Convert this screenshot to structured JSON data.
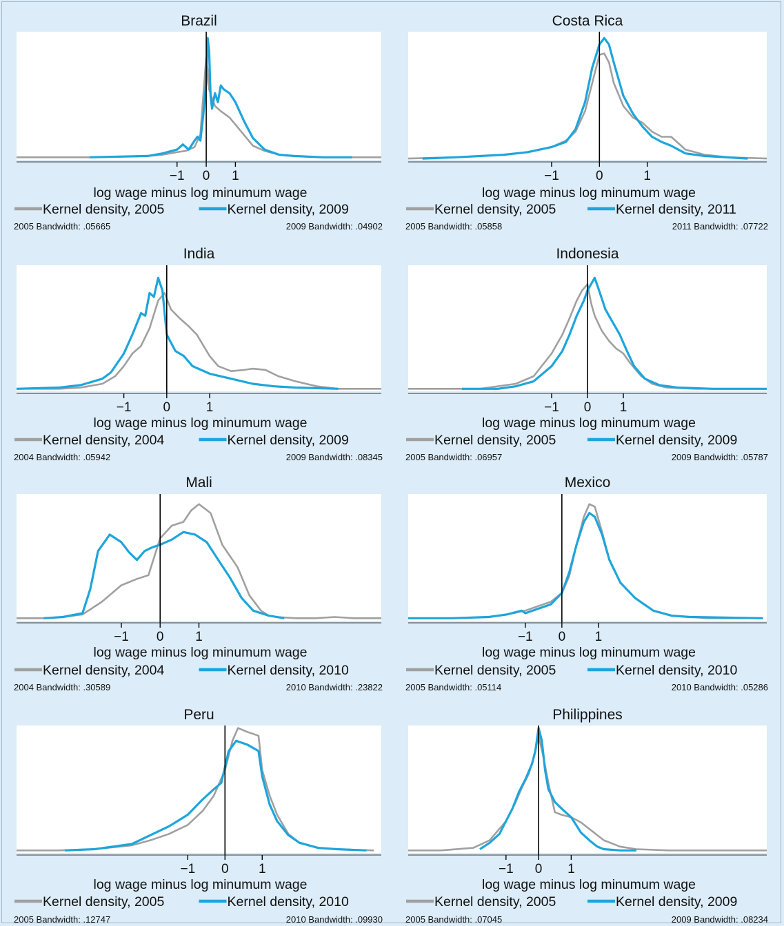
{
  "colors": {
    "background": "#dcecf8",
    "plot_bg": "#ffffff",
    "gray_series": "#a0a0a0",
    "blue_series": "#1ea5dc",
    "axis": "#000000"
  },
  "chart_data": [
    {
      "type": "line",
      "title": "Brazil",
      "xlabel": "log wage minus log minumum wage",
      "xlim": [
        -6.5,
        6.0
      ],
      "ylim": [
        0,
        1.0
      ],
      "xticks": [
        "−1",
        "0",
        "1"
      ],
      "xtick_values": [
        -1,
        0,
        1
      ],
      "vline_x": 0,
      "legend": [
        "Kernel density, 2005",
        "Kernel density, 2009"
      ],
      "bandwidth": [
        "2005 Bandwidth: .05665",
        "2009 Bandwidth: .04902"
      ],
      "series": [
        {
          "name": "Kernel density, 2005",
          "x": [
            -6.5,
            -4,
            -2,
            -1.5,
            -1,
            -0.7,
            -0.4,
            -0.2,
            -0.1,
            0,
            0.05,
            0.1,
            0.2,
            0.3,
            0.5,
            0.8,
            1.2,
            1.6,
            2,
            2.5,
            3,
            4,
            6
          ],
          "y": [
            0.02,
            0.02,
            0.03,
            0.04,
            0.06,
            0.07,
            0.1,
            0.2,
            0.5,
            0.8,
            0.7,
            0.55,
            0.48,
            0.42,
            0.38,
            0.33,
            0.22,
            0.11,
            0.07,
            0.04,
            0.03,
            0.02,
            0.02
          ]
        },
        {
          "name": "Kernel density, 2009",
          "x": [
            -4,
            -2,
            -1.5,
            -1,
            -0.8,
            -0.6,
            -0.4,
            -0.3,
            -0.2,
            -0.1,
            0,
            0.05,
            0.1,
            0.15,
            0.2,
            0.3,
            0.4,
            0.5,
            0.6,
            0.8,
            1,
            1.3,
            1.6,
            2,
            2.5,
            3,
            4,
            5
          ],
          "y": [
            0.02,
            0.03,
            0.05,
            0.08,
            0.12,
            0.08,
            0.15,
            0.18,
            0.15,
            0.35,
            0.6,
            0.95,
            0.85,
            0.5,
            0.4,
            0.52,
            0.45,
            0.58,
            0.55,
            0.52,
            0.45,
            0.3,
            0.17,
            0.08,
            0.04,
            0.03,
            0.02,
            0.02
          ]
        }
      ]
    },
    {
      "type": "line",
      "title": "Costa Rica",
      "xlabel": "log wage minus log minumum wage",
      "xlim": [
        -4.0,
        3.5
      ],
      "ylim": [
        0,
        1.0
      ],
      "xticks": [
        "−1",
        "0",
        "1"
      ],
      "xtick_values": [
        -1,
        0,
        1
      ],
      "vline_x": 0,
      "legend": [
        "Kernel density, 2005",
        "Kernel density, 2011"
      ],
      "bandwidth": [
        "2005 Bandwidth: .05858",
        "2011 Bandwidth: .07722"
      ],
      "series": [
        {
          "name": "Kernel density, 2005",
          "x": [
            -4,
            -3,
            -2,
            -1.5,
            -1,
            -0.7,
            -0.5,
            -0.3,
            -0.15,
            0,
            0.1,
            0.2,
            0.3,
            0.5,
            0.7,
            0.9,
            1.1,
            1.3,
            1.5,
            1.8,
            2.2,
            2.7,
            3.5
          ],
          "y": [
            0.01,
            0.02,
            0.04,
            0.06,
            0.1,
            0.15,
            0.22,
            0.38,
            0.6,
            0.82,
            0.83,
            0.76,
            0.6,
            0.42,
            0.33,
            0.29,
            0.22,
            0.18,
            0.18,
            0.08,
            0.04,
            0.02,
            0.01
          ]
        },
        {
          "name": "Kernel density, 2011",
          "x": [
            -3.7,
            -3,
            -2,
            -1.5,
            -1,
            -0.7,
            -0.5,
            -0.3,
            -0.15,
            0,
            0.1,
            0.2,
            0.3,
            0.5,
            0.7,
            0.9,
            1.1,
            1.3,
            1.5,
            1.8,
            2.2,
            3.1
          ],
          "y": [
            0.01,
            0.02,
            0.04,
            0.06,
            0.1,
            0.14,
            0.24,
            0.45,
            0.72,
            0.9,
            0.95,
            0.9,
            0.76,
            0.5,
            0.36,
            0.26,
            0.18,
            0.14,
            0.11,
            0.05,
            0.03,
            0.01
          ]
        }
      ]
    },
    {
      "type": "line",
      "title": "India",
      "xlabel": "log wage minus log minumum wage",
      "xlim": [
        -3.5,
        5.0
      ],
      "ylim": [
        0,
        1.0
      ],
      "xticks": [
        "−1",
        "0",
        "1"
      ],
      "xtick_values": [
        -1,
        0,
        1
      ],
      "vline_x": 0,
      "legend": [
        "Kernel density, 2004",
        "Kernel density, 2009"
      ],
      "bandwidth": [
        "2004 Bandwidth: .05942",
        "2009 Bandwidth: .08345"
      ],
      "series": [
        {
          "name": "Kernel density, 2004",
          "x": [
            -3.5,
            -2.5,
            -2,
            -1.5,
            -1.2,
            -1,
            -0.8,
            -0.6,
            -0.4,
            -0.2,
            -0.05,
            0.1,
            0.3,
            0.5,
            0.7,
            1,
            1.2,
            1.5,
            1.8,
            2,
            2.3,
            2.6,
            3,
            3.5,
            4,
            4.5,
            5
          ],
          "y": [
            0.02,
            0.02,
            0.03,
            0.06,
            0.12,
            0.2,
            0.3,
            0.36,
            0.5,
            0.72,
            0.78,
            0.65,
            0.58,
            0.52,
            0.45,
            0.28,
            0.2,
            0.16,
            0.17,
            0.18,
            0.17,
            0.12,
            0.08,
            0.04,
            0.02,
            0.02,
            0.02
          ]
        },
        {
          "name": "Kernel density, 2009",
          "x": [
            -3.5,
            -2.5,
            -2,
            -1.5,
            -1.3,
            -1,
            -0.8,
            -0.6,
            -0.5,
            -0.4,
            -0.3,
            -0.2,
            -0.1,
            0,
            0.2,
            0.4,
            0.6,
            1,
            1.5,
            2,
            2.5,
            3,
            4
          ],
          "y": [
            0.02,
            0.03,
            0.05,
            0.1,
            0.15,
            0.3,
            0.45,
            0.62,
            0.6,
            0.78,
            0.75,
            0.9,
            0.8,
            0.45,
            0.32,
            0.28,
            0.2,
            0.14,
            0.1,
            0.06,
            0.04,
            0.03,
            0.02
          ]
        }
      ]
    },
    {
      "type": "line",
      "title": "Indonesia",
      "xlabel": "log wage minus log minumum wage",
      "xlim": [
        -5.0,
        5.0
      ],
      "ylim": [
        0,
        1.0
      ],
      "xticks": [
        "−1",
        "0",
        "1"
      ],
      "xtick_values": [
        -1,
        0,
        1
      ],
      "vline_x": 0,
      "legend": [
        "Kernel density, 2005",
        "Kernel density, 2009"
      ],
      "bandwidth": [
        "2005 Bandwidth: .06957",
        "2009 Bandwidth: .05787"
      ],
      "series": [
        {
          "name": "Kernel density, 2005",
          "x": [
            -5,
            -3,
            -2,
            -1.5,
            -1,
            -0.7,
            -0.5,
            -0.3,
            -0.15,
            0,
            0.1,
            0.2,
            0.4,
            0.6,
            0.8,
            1,
            1.2,
            1.5,
            1.8,
            2.2,
            3,
            4,
            5
          ],
          "y": [
            0.02,
            0.02,
            0.06,
            0.12,
            0.3,
            0.45,
            0.58,
            0.72,
            0.8,
            0.85,
            0.7,
            0.6,
            0.48,
            0.4,
            0.34,
            0.3,
            0.22,
            0.12,
            0.06,
            0.03,
            0.02,
            0.02,
            0.02
          ]
        },
        {
          "name": "Kernel density, 2009",
          "x": [
            -3.5,
            -2.5,
            -2,
            -1.5,
            -1,
            -0.7,
            -0.5,
            -0.3,
            -0.1,
            0,
            0.1,
            0.2,
            0.3,
            0.5,
            0.7,
            0.9,
            1.1,
            1.3,
            1.6,
            2,
            2.5,
            3.5,
            5
          ],
          "y": [
            0.02,
            0.02,
            0.04,
            0.08,
            0.2,
            0.32,
            0.45,
            0.6,
            0.72,
            0.8,
            0.85,
            0.9,
            0.82,
            0.65,
            0.55,
            0.45,
            0.32,
            0.2,
            0.1,
            0.05,
            0.03,
            0.02,
            0.02
          ]
        }
      ]
    },
    {
      "type": "line",
      "title": "Mali",
      "xlabel": "log wage minus log minumum wage",
      "xlim": [
        -3.7,
        5.7
      ],
      "ylim": [
        0,
        1.0
      ],
      "xticks": [
        "−1",
        "0",
        "1"
      ],
      "xtick_values": [
        -1,
        0,
        1
      ],
      "vline_x": 0,
      "legend": [
        "Kernel density, 2004",
        "Kernel density, 2010"
      ],
      "bandwidth": [
        "2004 Bandwidth: .30589",
        "2010 Bandwidth: .23822"
      ],
      "series": [
        {
          "name": "Kernel density, 2004",
          "x": [
            -3.7,
            -3,
            -2.5,
            -2,
            -1.5,
            -1,
            -0.6,
            -0.3,
            0,
            0.3,
            0.6,
            0.8,
            1,
            1.3,
            1.6,
            2,
            2.3,
            2.6,
            2.8,
            3,
            3.5,
            4,
            4.5,
            5,
            5.7
          ],
          "y": [
            0.02,
            0.02,
            0.03,
            0.05,
            0.15,
            0.28,
            0.33,
            0.36,
            0.65,
            0.75,
            0.78,
            0.87,
            0.92,
            0.85,
            0.6,
            0.42,
            0.2,
            0.08,
            0.04,
            0.03,
            0.02,
            0.02,
            0.03,
            0.02,
            0.02
          ]
        },
        {
          "name": "Kernel density, 2010",
          "x": [
            -3,
            -2.5,
            -2,
            -1.8,
            -1.6,
            -1.3,
            -1,
            -0.8,
            -0.6,
            -0.4,
            -0.2,
            0,
            0.3,
            0.6,
            0.9,
            1.2,
            1.5,
            1.8,
            2.1,
            2.4,
            2.8,
            3.2
          ],
          "y": [
            0.02,
            0.03,
            0.06,
            0.25,
            0.55,
            0.68,
            0.62,
            0.54,
            0.48,
            0.55,
            0.58,
            0.6,
            0.64,
            0.7,
            0.68,
            0.62,
            0.48,
            0.34,
            0.18,
            0.08,
            0.04,
            0.02
          ]
        }
      ]
    },
    {
      "type": "line",
      "title": "Mexico",
      "xlabel": "log wage minus log minumum wage",
      "xlim": [
        -4.2,
        5.6
      ],
      "ylim": [
        0,
        1.0
      ],
      "xticks": [
        "−1",
        "0",
        "1"
      ],
      "xtick_values": [
        -1,
        0,
        1
      ],
      "vline_x": 0,
      "legend": [
        "Kernel density, 2005",
        "Kernel density, 2010"
      ],
      "bandwidth": [
        "2005 Bandwidth: .05114",
        "2010 Bandwidth: .05286"
      ],
      "series": [
        {
          "name": "Kernel density, 2005",
          "x": [
            -4.2,
            -3,
            -2,
            -1.5,
            -1,
            -0.6,
            -0.3,
            0,
            0.2,
            0.4,
            0.6,
            0.75,
            0.9,
            1.1,
            1.3,
            1.6,
            2,
            2.5,
            3,
            3.5,
            4,
            5
          ],
          "y": [
            0.02,
            0.02,
            0.03,
            0.05,
            0.08,
            0.12,
            0.15,
            0.22,
            0.35,
            0.6,
            0.82,
            0.92,
            0.9,
            0.7,
            0.48,
            0.3,
            0.18,
            0.08,
            0.04,
            0.03,
            0.02,
            0.02
          ]
        },
        {
          "name": "Kernel density, 2010",
          "x": [
            -4.2,
            -3,
            -2,
            -1.5,
            -1.1,
            -1,
            -0.6,
            -0.3,
            0,
            0.2,
            0.4,
            0.6,
            0.75,
            0.9,
            1.1,
            1.3,
            1.6,
            2,
            2.5,
            3,
            3.5,
            5.5
          ],
          "y": [
            0.02,
            0.02,
            0.03,
            0.05,
            0.08,
            0.06,
            0.1,
            0.13,
            0.22,
            0.38,
            0.6,
            0.78,
            0.85,
            0.82,
            0.68,
            0.48,
            0.3,
            0.18,
            0.08,
            0.04,
            0.03,
            0.02
          ]
        }
      ]
    },
    {
      "type": "line",
      "title": "Peru",
      "xlabel": "log wage minus log minumum wage",
      "xlim": [
        -5.6,
        4.2
      ],
      "ylim": [
        0,
        1.0
      ],
      "xticks": [
        "−1",
        "0",
        "1"
      ],
      "xtick_values": [
        -1,
        0,
        1
      ],
      "vline_x": 0,
      "legend": [
        "Kernel density, 2005",
        "Kernel density, 2010"
      ],
      "bandwidth": [
        "2005 Bandwidth: .12747",
        "2010 Bandwidth: .09930"
      ],
      "series": [
        {
          "name": "Kernel density, 2005",
          "x": [
            -5.6,
            -4.5,
            -3.5,
            -2.5,
            -2,
            -1.5,
            -1,
            -0.6,
            -0.3,
            0,
            0.2,
            0.35,
            0.6,
            0.9,
            1,
            1.2,
            1.4,
            1.7,
            2,
            2.5,
            3,
            4
          ],
          "y": [
            0.02,
            0.02,
            0.03,
            0.06,
            0.1,
            0.15,
            0.22,
            0.33,
            0.45,
            0.65,
            0.88,
            0.98,
            0.95,
            0.92,
            0.65,
            0.45,
            0.3,
            0.15,
            0.08,
            0.04,
            0.03,
            0.02
          ]
        },
        {
          "name": "Kernel density, 2010",
          "x": [
            -4.3,
            -3.5,
            -2.5,
            -2,
            -1.5,
            -1,
            -0.6,
            -0.3,
            -0.1,
            0.1,
            0.3,
            0.6,
            0.9,
            1,
            1.2,
            1.4,
            1.7,
            2,
            2.5,
            3,
            3.8
          ],
          "y": [
            0.02,
            0.03,
            0.07,
            0.14,
            0.21,
            0.3,
            0.42,
            0.5,
            0.55,
            0.8,
            0.88,
            0.85,
            0.8,
            0.6,
            0.38,
            0.25,
            0.14,
            0.08,
            0.04,
            0.03,
            0.02
          ]
        }
      ]
    },
    {
      "type": "line",
      "title": "Philippines",
      "xlabel": "log wage minus log minumum wage",
      "xlim": [
        -4.0,
        7.0
      ],
      "ylim": [
        0,
        1.0
      ],
      "xticks": [
        "−1",
        "0",
        "1"
      ],
      "xtick_values": [
        -1,
        0,
        1
      ],
      "vline_x": 0,
      "legend": [
        "Kernel density, 2005",
        "Kernel density, 2009"
      ],
      "bandwidth": [
        "2005 Bandwidth: .07045",
        "2009 Bandwidth: .08234"
      ],
      "series": [
        {
          "name": "Kernel density, 2005",
          "x": [
            -4,
            -3,
            -2,
            -1.5,
            -1,
            -0.7,
            -0.5,
            -0.3,
            -0.15,
            0,
            0.15,
            0.3,
            0.5,
            0.7,
            1,
            1.3,
            1.6,
            2,
            2.5,
            3,
            4,
            5,
            7
          ],
          "y": [
            0.02,
            0.02,
            0.04,
            0.1,
            0.25,
            0.4,
            0.52,
            0.62,
            0.75,
            0.92,
            0.75,
            0.55,
            0.32,
            0.3,
            0.28,
            0.24,
            0.18,
            0.1,
            0.05,
            0.03,
            0.02,
            0.02,
            0.02
          ]
        },
        {
          "name": "Kernel density, 2009",
          "x": [
            -1.8,
            -1.5,
            -1.2,
            -1,
            -0.8,
            -0.6,
            -0.4,
            -0.2,
            -0.1,
            0,
            0.1,
            0.2,
            0.3,
            0.5,
            0.7,
            1,
            1.3,
            1.6,
            1.8,
            2,
            2.5,
            3
          ],
          "y": [
            0.03,
            0.08,
            0.15,
            0.25,
            0.35,
            0.48,
            0.58,
            0.7,
            0.8,
            0.98,
            0.88,
            0.65,
            0.5,
            0.4,
            0.35,
            0.28,
            0.16,
            0.09,
            0.05,
            0.03,
            0.02,
            0.02
          ]
        }
      ]
    }
  ]
}
